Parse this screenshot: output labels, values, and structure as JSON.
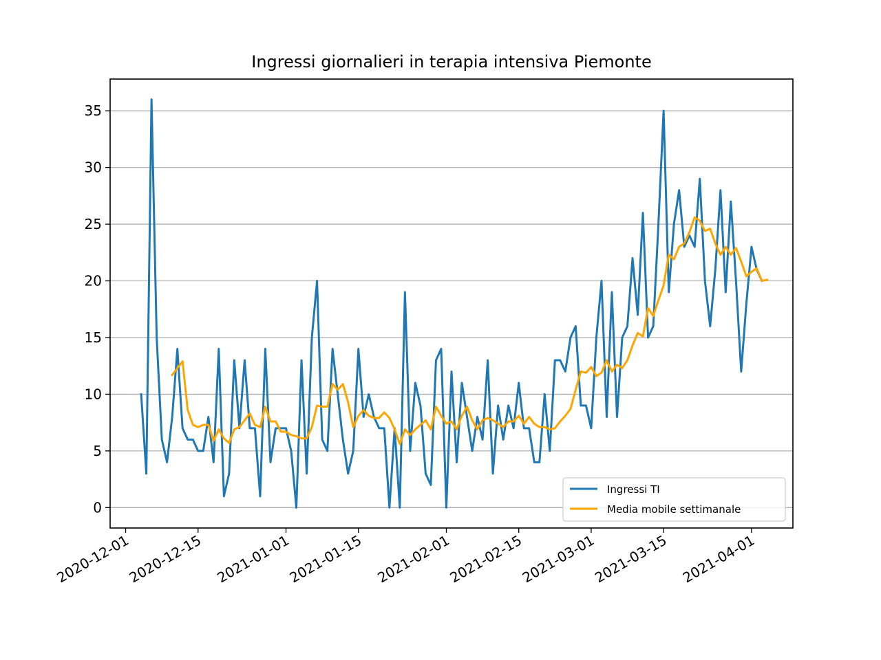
{
  "chart_data": {
    "type": "line",
    "title": "Ingressi giornalieri in terapia intensiva Piemonte",
    "xlabel": "",
    "ylabel": "",
    "x_start": "2020-12-04",
    "x_ticks": [
      "2020-12-01",
      "2020-12-15",
      "2021-01-01",
      "2021-01-15",
      "2021-02-01",
      "2021-02-15",
      "2021-03-01",
      "2021-03-15",
      "2021-04-01"
    ],
    "y_ticks": [
      0,
      5,
      10,
      15,
      20,
      25,
      30,
      35
    ],
    "xlim": [
      "2020-11-28",
      "2021-04-09"
    ],
    "ylim": [
      -1.8,
      37.8
    ],
    "grid": "horizontal",
    "legend_position": "lower-right",
    "series": [
      {
        "name": "Ingressi TI",
        "color": "#1f77b4",
        "start_date": "2020-12-04",
        "values": [
          10,
          3,
          36,
          15,
          6,
          4,
          8,
          14,
          7,
          6,
          6,
          5,
          5,
          8,
          4,
          14,
          1,
          3,
          13,
          7,
          13,
          7,
          7,
          1,
          14,
          4,
          7,
          7,
          7,
          5,
          0,
          13,
          3,
          15,
          20,
          6,
          5,
          14,
          10,
          6,
          3,
          5,
          14,
          8,
          10,
          8,
          7,
          7,
          0,
          7,
          0,
          19,
          5,
          11,
          9,
          3,
          2,
          13,
          14,
          0,
          12,
          4,
          11,
          8,
          5,
          8,
          6,
          13,
          3,
          9,
          6,
          9,
          7,
          11,
          7,
          7,
          4,
          4,
          10,
          5,
          13,
          13,
          12,
          15,
          16,
          9,
          9,
          7,
          15,
          20,
          8,
          19,
          8,
          15,
          16,
          22,
          17,
          26,
          15,
          16,
          25,
          35,
          19,
          25,
          28,
          23,
          24,
          23,
          29,
          20,
          16,
          21,
          28,
          19,
          27,
          20,
          12,
          18,
          23,
          21,
          20
        ]
      },
      {
        "name": "Media mobile settimanale",
        "color": "#ffa500",
        "start_date": "2020-12-10",
        "values": [
          11.7,
          12.3,
          12.9,
          8.6,
          7.3,
          7.1,
          7.3,
          7.3,
          5.9,
          6.9,
          6.1,
          5.7,
          6.9,
          7.1,
          7.7,
          8.3,
          7.3,
          7.1,
          8.9,
          7.6,
          7.6,
          6.7,
          6.7,
          6.4,
          6.3,
          6.1,
          6.1,
          7.1,
          9.0,
          8.9,
          8.9,
          10.9,
          10.4,
          10.9,
          9.3,
          7.1,
          8.1,
          8.6,
          8.1,
          7.9,
          7.9,
          8.4,
          7.9,
          6.9,
          5.6,
          6.9,
          6.4,
          6.9,
          7.3,
          7.7,
          6.9,
          8.9,
          8.1,
          7.4,
          7.6,
          6.9,
          8.1,
          8.9,
          7.7,
          6.9,
          7.7,
          7.9,
          7.7,
          7.4,
          7.1,
          7.6,
          7.6,
          8.1,
          7.4,
          8.0,
          7.4,
          7.1,
          7.1,
          6.9,
          7.0,
          7.6,
          8.1,
          8.7,
          10.4,
          12.0,
          11.9,
          12.4,
          11.6,
          11.9,
          13.0,
          12.0,
          12.6,
          12.3,
          13.0,
          14.3,
          15.4,
          15.1,
          17.6,
          16.9,
          18.3,
          19.6,
          22.3,
          21.9,
          23.0,
          23.3,
          24.3,
          25.6,
          25.3,
          24.4,
          24.6,
          23.3,
          22.3,
          23.0,
          22.3,
          22.9,
          21.7,
          20.4,
          20.8,
          21.1,
          20.0,
          20.1
        ]
      }
    ]
  }
}
